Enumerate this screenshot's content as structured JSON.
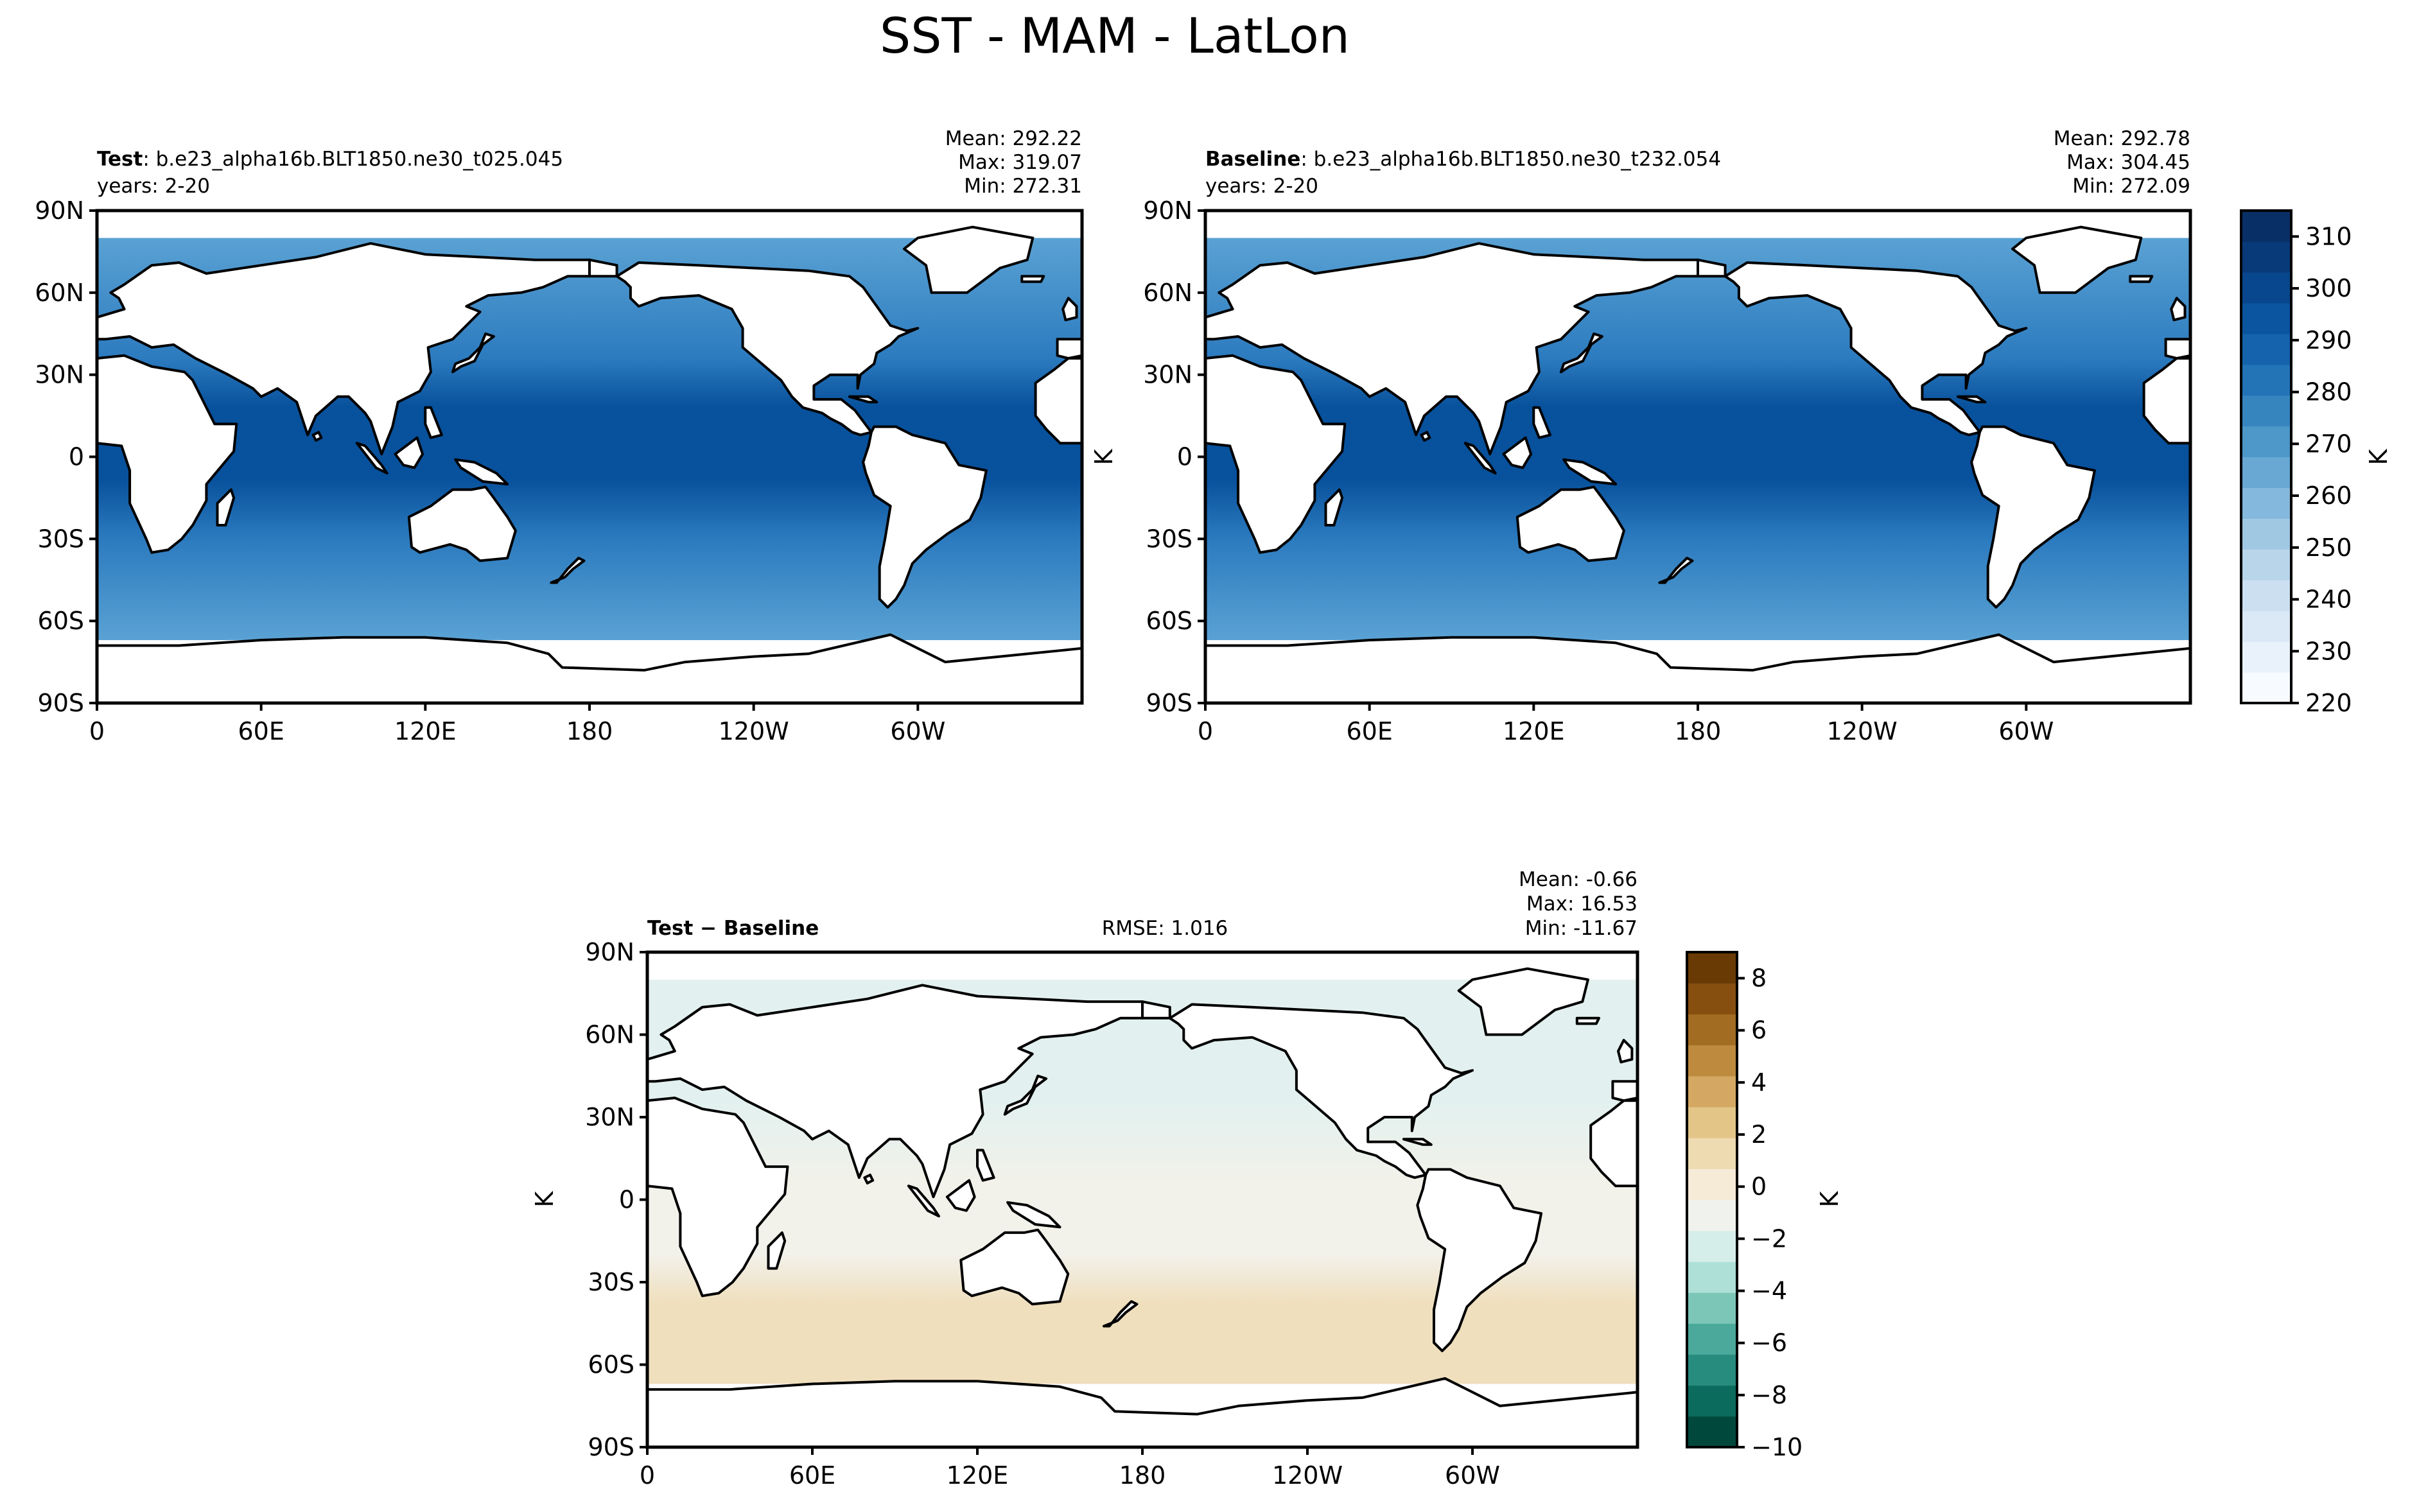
{
  "figure_title": "SST - MAM - LatLon",
  "lat_ticks": [
    "90N",
    "60N",
    "30N",
    "0",
    "30S",
    "60S",
    "90S"
  ],
  "lon_ticks": [
    "0",
    "60E",
    "120E",
    "180",
    "120W",
    "60W"
  ],
  "panels": {
    "test": {
      "name_bold": "Test",
      "name_rest": ": b.e23_alpha16b.BLT1850.ne30_t025.045",
      "years": "years: 2-20",
      "mean": "Mean: 292.22",
      "max": "Max: 319.07",
      "min": "Min: 272.31"
    },
    "baseline": {
      "name_bold": "Baseline",
      "name_rest": ": b.e23_alpha16b.BLT1850.ne30_t232.054",
      "years": "years: 2-20",
      "mean": "Mean: 292.78",
      "max": "Max: 304.45",
      "min": "Min: 272.09",
      "ylabel": "K"
    },
    "diff": {
      "name_bold": "Test − Baseline",
      "rmse": "RMSE: 1.016",
      "mean": "Mean: -0.66",
      "max": "Max: 16.53",
      "min": "Min: -11.67",
      "ylabel": "K"
    }
  },
  "colorbar_top": {
    "label": "K",
    "ticks": [
      "220",
      "230",
      "240",
      "250",
      "260",
      "270",
      "280",
      "290",
      "300",
      "310"
    ],
    "colors": [
      "#f7fbff",
      "#e9f2fb",
      "#dbe9f6",
      "#ccdff1",
      "#b8d5ea",
      "#a0c8e3",
      "#84b8dc",
      "#68a8d3",
      "#4d97c9",
      "#3685bf",
      "#2274b6",
      "#1463ac",
      "#0b54a0",
      "#08468e",
      "#083a7a",
      "#082f66"
    ]
  },
  "colorbar_diff": {
    "label": "K",
    "ticks": [
      "8",
      "6",
      "4",
      "2",
      "0",
      "−2",
      "−4",
      "−6",
      "−8",
      "−10"
    ],
    "colors": [
      "#00473c",
      "#0b6b5d",
      "#278c7e",
      "#4aa99a",
      "#7cc6b8",
      "#aee0d7",
      "#d6eee9",
      "#f0f2ee",
      "#f5ebd7",
      "#efdbb2",
      "#e2c587",
      "#d4a863",
      "#bd8a3e",
      "#a26c22",
      "#864f10",
      "#6a3a05"
    ]
  },
  "map_colors": {
    "ocean_top_warm": "#08519c",
    "ocean_top_mid": "#2c7bbf",
    "ocean_top_cool": "#5aa2d4",
    "ocean_diff_neutral": "#f2f1ea",
    "ocean_diff_warm": "#efdfbd",
    "ocean_diff_cool": "#e2f1ef",
    "land": "#ffffff"
  }
}
